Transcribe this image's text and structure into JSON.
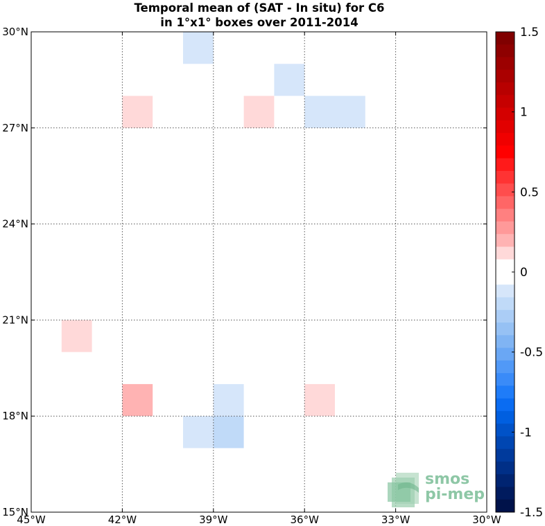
{
  "chart_data": {
    "type": "heatmap",
    "title_line1": "Temporal mean of (SAT - In situ) for C6",
    "title_line2": "in 1°x1° boxes over 2011-2014",
    "xlim": [
      -45,
      -30
    ],
    "ylim": [
      15,
      30
    ],
    "xticks": [
      {
        "value": -45,
        "label": "45°W"
      },
      {
        "value": -42,
        "label": "42°W"
      },
      {
        "value": -39,
        "label": "39°W"
      },
      {
        "value": -36,
        "label": "36°W"
      },
      {
        "value": -33,
        "label": "33°W"
      },
      {
        "value": -30,
        "label": "30°W"
      }
    ],
    "yticks": [
      {
        "value": 30,
        "label": "30°N"
      },
      {
        "value": 27,
        "label": "27°N"
      },
      {
        "value": 24,
        "label": "24°N"
      },
      {
        "value": 21,
        "label": "21°N"
      },
      {
        "value": 18,
        "label": "18°N"
      },
      {
        "value": 15,
        "label": "15°N"
      }
    ],
    "grid": true,
    "cells": [
      {
        "lon": -40,
        "lat": 29,
        "value": -0.1
      },
      {
        "lon": -37,
        "lat": 28,
        "value": -0.1
      },
      {
        "lon": -42,
        "lat": 27,
        "value": 0.1
      },
      {
        "lon": -38,
        "lat": 27,
        "value": 0.1
      },
      {
        "lon": -36,
        "lat": 27,
        "value": -0.1
      },
      {
        "lon": -35,
        "lat": 27,
        "value": -0.1
      },
      {
        "lon": -44,
        "lat": 20,
        "value": 0.1
      },
      {
        "lon": -42,
        "lat": 18,
        "value": 0.2
      },
      {
        "lon": -39,
        "lat": 18,
        "value": -0.1
      },
      {
        "lon": -36,
        "lat": 18,
        "value": 0.1
      },
      {
        "lon": -40,
        "lat": 17,
        "value": -0.1
      },
      {
        "lon": -39,
        "lat": 17,
        "value": -0.2
      }
    ],
    "colorbar": {
      "vmin": -1.5,
      "vmax": 1.5,
      "ticks": [
        {
          "value": 1.5,
          "label": "1.5"
        },
        {
          "value": 1,
          "label": "1"
        },
        {
          "value": 0.5,
          "label": "0.5"
        },
        {
          "value": 0,
          "label": "0"
        },
        {
          "value": -0.5,
          "label": "-0.5"
        },
        {
          "value": -1,
          "label": "-1"
        },
        {
          "value": -1.5,
          "label": "-1.5"
        }
      ],
      "colors_top_to_bottom": [
        "#800000",
        "#8e0000",
        "#9c0000",
        "#aa0000",
        "#b80000",
        "#c60000",
        "#d40000",
        "#e20000",
        "#f00000",
        "#ff0000",
        "#ff1a1a",
        "#ff3333",
        "#ff4d4d",
        "#ff6666",
        "#ff8080",
        "#ff9999",
        "#ffb3b3",
        "#ffd9d9",
        "#ffffff",
        "#ffffff",
        "#d6e6fa",
        "#c0daf8",
        "#abcdf6",
        "#96c1f4",
        "#80b4f3",
        "#6aa7f4",
        "#5199f7",
        "#3a8bf8",
        "#1f7cf8",
        "#0a6cf2",
        "#005fe0",
        "#0052c8",
        "#0046b2",
        "#003a9c",
        "#002f87",
        "#002471",
        "#001b5e",
        "#00124a"
      ]
    },
    "watermark": {
      "line1": "smos",
      "line2": "pi-mep"
    }
  }
}
